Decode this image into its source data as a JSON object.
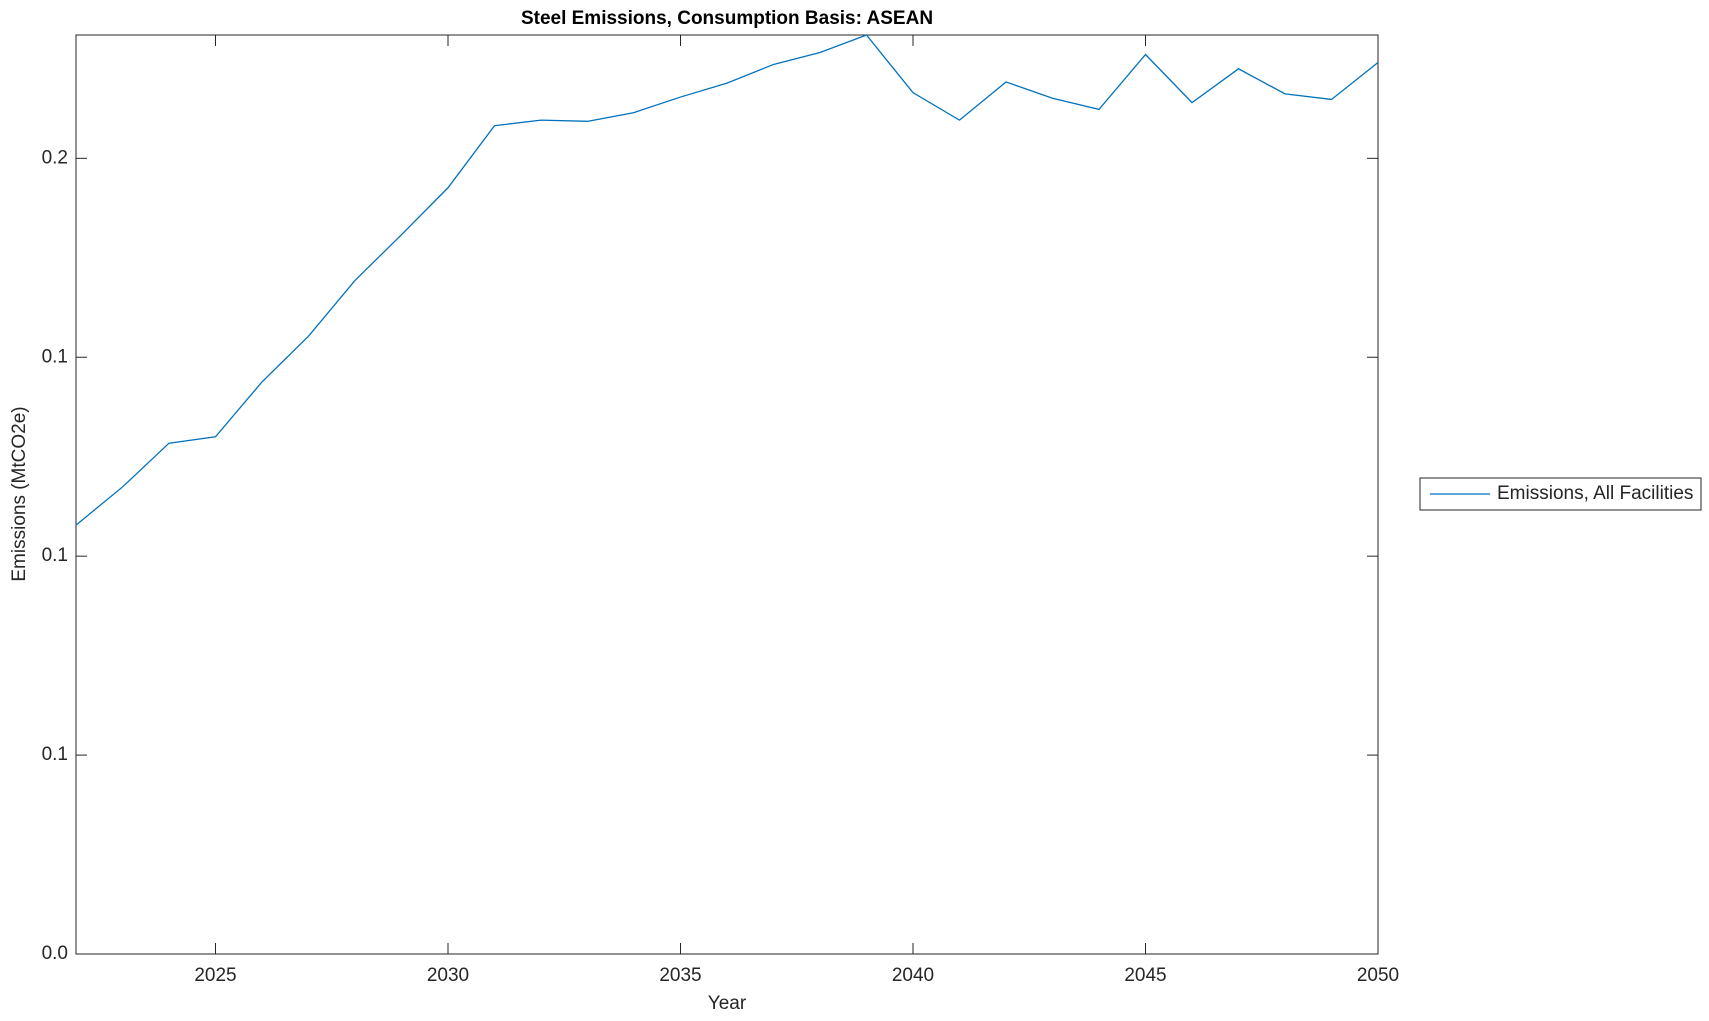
{
  "chart_data": {
    "type": "line",
    "title": "Steel Emissions, Consumption Basis: ASEAN",
    "x_label": "Year",
    "y_label": "Emissions (MtCO2e)",
    "x": [
      2022,
      2023,
      2024,
      2025,
      2026,
      2027,
      2028,
      2029,
      2030,
      2031,
      2032,
      2033,
      2034,
      2035,
      2036,
      2037,
      2038,
      2039,
      2040,
      2041,
      2042,
      2043,
      2044,
      2045,
      2046,
      2047,
      2048,
      2049,
      2050
    ],
    "series": [
      {
        "name": "Emissions, All Facilities",
        "color": "#0072bd",
        "values": [
          0.1078,
          0.1174,
          0.1284,
          0.13,
          0.1438,
          0.1553,
          0.1693,
          0.1808,
          0.1926,
          0.2082,
          0.2096,
          0.2093,
          0.2115,
          0.2154,
          0.2189,
          0.2236,
          0.2266,
          0.231,
          0.2165,
          0.2096,
          0.2192,
          0.2151,
          0.2123,
          0.2261,
          0.214,
          0.2225,
          0.2162,
          0.2148,
          0.2241
        ]
      }
    ],
    "xlim": [
      2022,
      2050
    ],
    "xticks": [
      2025,
      2030,
      2035,
      2040,
      2045,
      2050
    ],
    "ylim": [
      0,
      0.231
    ],
    "yticks": [
      {
        "value": 0,
        "label": "0.0"
      },
      {
        "value": 0.05,
        "label": "0.1"
      },
      {
        "value": 0.1,
        "label": "0.1"
      },
      {
        "value": 0.15,
        "label": "0.1"
      },
      {
        "value": 0.2,
        "label": "0.2"
      }
    ],
    "legend": "outside-right"
  }
}
